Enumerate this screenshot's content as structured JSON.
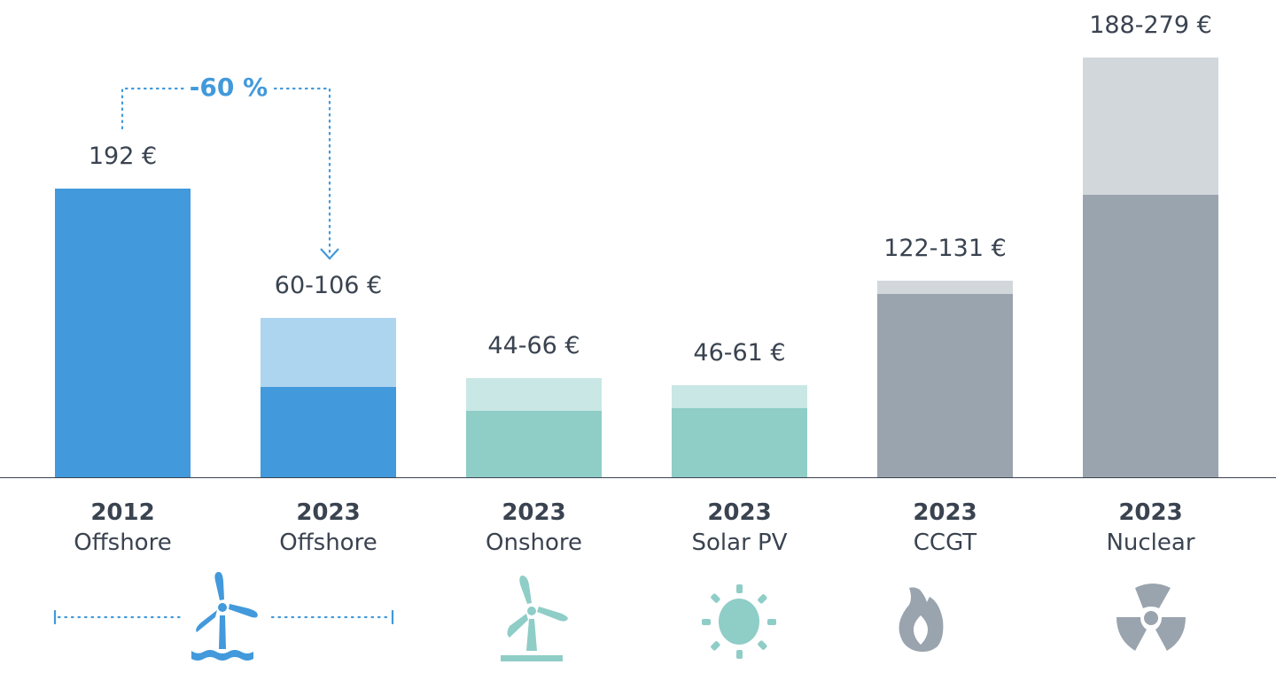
{
  "chart_data": {
    "type": "bar",
    "stacked_range": true,
    "ylim": [
      0,
      290
    ],
    "grid": false,
    "categories": [
      {
        "year": "2012",
        "name": "Offshore",
        "low": 192,
        "high": 192,
        "label": "192 €",
        "color": "#4299db",
        "range_color": "#aed5f0",
        "icon": "offshore-wind-turbine-icon"
      },
      {
        "year": "2023",
        "name": "Offshore",
        "low": 60,
        "high": 106,
        "label": "60-106 €",
        "color": "#4299db",
        "range_color": "#aed5f0",
        "icon": ""
      },
      {
        "year": "2023",
        "name": "Onshore",
        "low": 44,
        "high": 66,
        "label": "44-66 €",
        "color": "#8fcdc7",
        "range_color": "#c8e7e5",
        "icon": "onshore-wind-turbine-icon"
      },
      {
        "year": "2023",
        "name": "Solar PV",
        "low": 46,
        "high": 61,
        "label": "46-61 €",
        "color": "#8fcdc7",
        "range_color": "#c8e7e5",
        "icon": "sun-icon"
      },
      {
        "year": "2023",
        "name": "CCGT",
        "low": 122,
        "high": 131,
        "label": "122-131 €",
        "color": "#9aa4ae",
        "range_color": "#d2d7db",
        "icon": "flame-icon"
      },
      {
        "year": "2023",
        "name": "Nuclear",
        "low": 188,
        "high": 279,
        "label": "188-279 €",
        "color": "#9aa4ae",
        "range_color": "#d2d7db",
        "icon": "radiation-icon"
      }
    ],
    "annotation": {
      "text": "-60 %",
      "from": "2012 Offshore",
      "to": "2023 Offshore",
      "color": "#4299db"
    }
  }
}
